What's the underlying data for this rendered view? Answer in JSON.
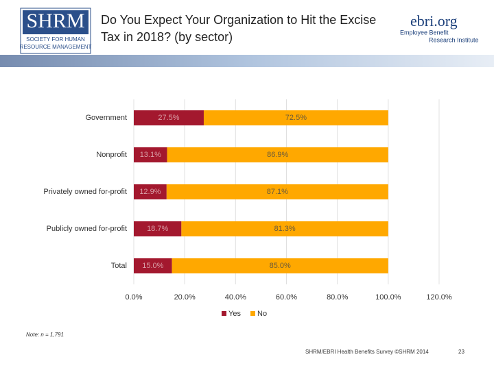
{
  "header": {
    "title_line1": "Do You Expect Your Organization to Hit the Excise",
    "title_line2": "Tax in 2018? (by sector)",
    "shrm_logo": "SHRM",
    "shrm_tagline1": "SOCIETY FOR HUMAN",
    "shrm_tagline2": "RESOURCE MANAGEMENT",
    "ebri_logo": "ebri.org",
    "ebri_tagline1": "Employee Benefit",
    "ebri_tagline2": "Research Institute"
  },
  "chart_data": {
    "type": "stacked_bar_horizontal",
    "categories": [
      "Government",
      "Nonprofit",
      "Privately owned for-profit",
      "Publicly owned for-profit",
      "Total"
    ],
    "series": [
      {
        "name": "Yes",
        "color": "#a3182e",
        "values": [
          27.5,
          13.1,
          12.9,
          18.7,
          15.0
        ],
        "value_labels": [
          "27.5%",
          "13.1%",
          "12.9%",
          "18.7%",
          "15.0%"
        ]
      },
      {
        "name": "No",
        "color": "#ffa800",
        "values": [
          72.5,
          86.9,
          87.1,
          81.3,
          85.0
        ],
        "value_labels": [
          "72.5%",
          "86.9%",
          "87.1%",
          "81.3%",
          "85.0%"
        ]
      }
    ],
    "xlim": [
      0,
      120
    ],
    "xticks": [
      {
        "value": 0,
        "label": "0.0%"
      },
      {
        "value": 20,
        "label": "20.0%"
      },
      {
        "value": 40,
        "label": "40.0%"
      },
      {
        "value": 60,
        "label": "60.0%"
      },
      {
        "value": 80,
        "label": "80.0%"
      },
      {
        "value": 100,
        "label": "100.0%"
      },
      {
        "value": 120,
        "label": "120.0%"
      }
    ],
    "grid": true,
    "legend": "bottom"
  },
  "footer": {
    "note": "Note: n = 1,791",
    "source": "SHRM/EBRI Health Benefits Survey ©SHRM 2014",
    "page": "23"
  }
}
